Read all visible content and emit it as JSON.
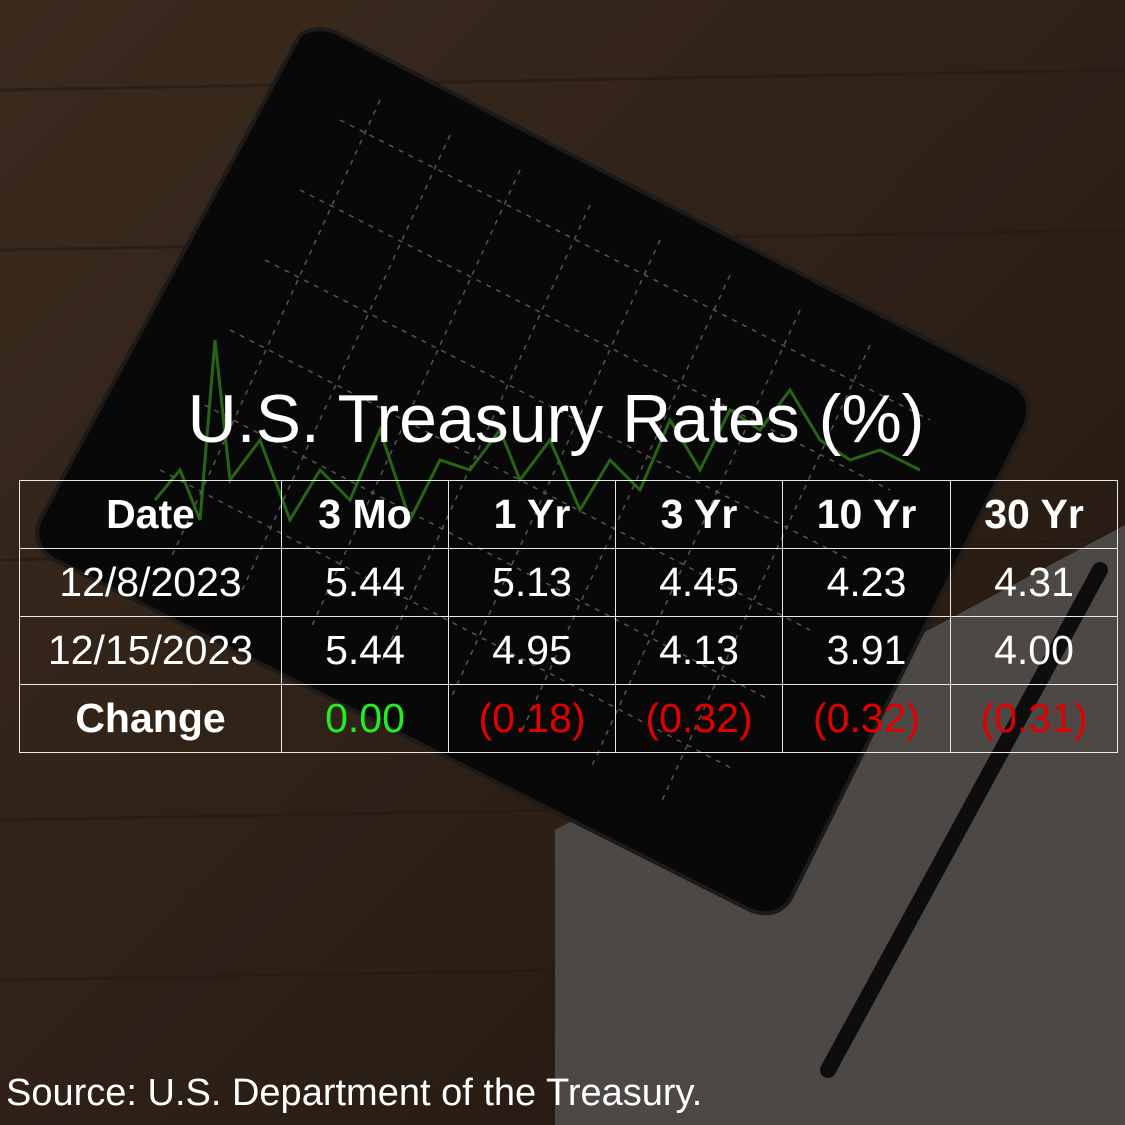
{
  "title": "U.S. Treasury Rates (%)",
  "table": {
    "header": [
      "Date",
      "3 Mo",
      "1 Yr",
      "3 Yr",
      "10 Yr",
      "30 Yr"
    ],
    "rows": [
      [
        "12/8/2023",
        "5.44",
        "5.13",
        "4.45",
        "4.23",
        "4.31"
      ],
      [
        "12/15/2023",
        "5.44",
        "4.95",
        "4.13",
        "3.91",
        "4.00"
      ],
      [
        "Change",
        "0.00",
        "(0.18)",
        "(0.32)",
        "(0.32)",
        "(0.31)"
      ]
    ],
    "row_colors": [
      [
        "#ffffff",
        "#ffffff",
        "#ffffff",
        "#ffffff",
        "#ffffff",
        "#ffffff"
      ],
      [
        "#ffffff",
        "#ffffff",
        "#ffffff",
        "#ffffff",
        "#ffffff",
        "#ffffff"
      ],
      [
        "#ffffff",
        "#22ee22",
        "#e00000",
        "#e00000",
        "#e00000",
        "#e00000"
      ]
    ]
  },
  "source": "Source: U.S. Department of the Treasury."
}
